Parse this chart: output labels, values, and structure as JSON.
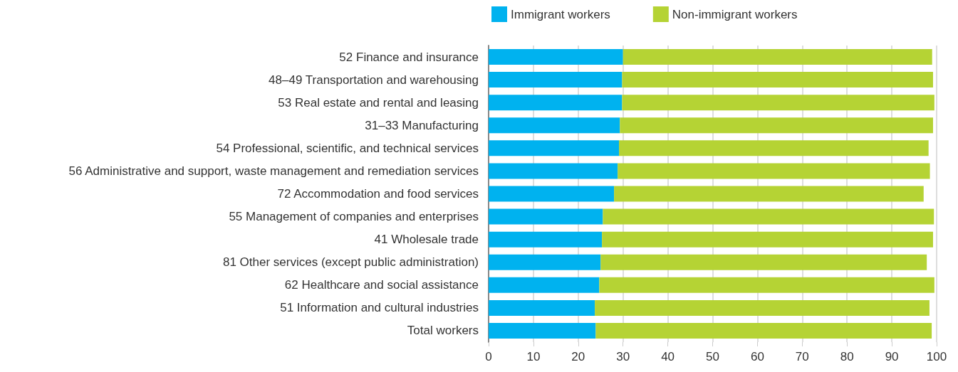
{
  "chart_data": {
    "type": "bar",
    "orientation": "horizontal",
    "stacked": true,
    "categories": [
      "52 Finance and insurance",
      "48–49 Transportation and warehousing",
      "53 Real estate and rental and leasing",
      "31–33 Manufacturing",
      "54 Professional, scientific, and technical services",
      "56 Administrative and support, waste management and remediation services",
      "72 Accommodation and food services",
      "55 Management of companies and enterprises",
      "41 Wholesale trade",
      "81 Other services (except public administration)",
      "62 Healthcare and social assistance",
      "51 Information and cultural industries",
      "Total workers"
    ],
    "series": [
      {
        "name": "Immigrant workers",
        "color": "#00b2ef",
        "values": [
          30.0,
          29.8,
          29.8,
          29.3,
          29.1,
          28.8,
          28.0,
          25.5,
          25.3,
          25.0,
          24.7,
          23.7,
          23.9
        ]
      },
      {
        "name": "Non-immigrant workers",
        "color": "#b5d334",
        "values": [
          69.0,
          69.4,
          69.7,
          69.9,
          69.1,
          69.7,
          69.1,
          73.9,
          73.9,
          72.8,
          74.8,
          74.7,
          75.0
        ]
      }
    ],
    "xlim": [
      0,
      100
    ],
    "xticks": [
      0,
      10,
      20,
      30,
      40,
      50,
      60,
      70,
      80,
      90,
      100
    ],
    "grid": "x",
    "legend": "top"
  }
}
